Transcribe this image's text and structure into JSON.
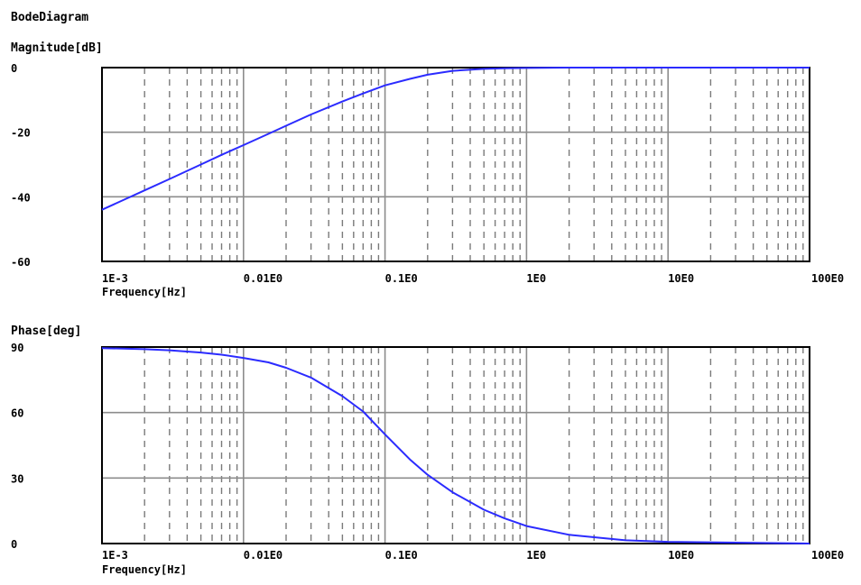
{
  "page_title": "BodeDiagram",
  "colors": {
    "curve": "#2b2bff",
    "grid_major": "#8c8c8c",
    "grid_minor": "#7a7a7a",
    "frame": "#000000"
  },
  "chart_data": [
    {
      "type": "line",
      "title": "Magnitude[dB]",
      "xlabel": "Frequency[Hz]",
      "ylabel": "Magnitude[dB]",
      "x_scale": "log",
      "xlim": [
        0.001,
        100
      ],
      "ylim": [
        -60,
        0
      ],
      "y_ticks": [
        0,
        -20,
        -40,
        -60
      ],
      "y_tick_labels": [
        "0",
        "-20",
        "-40",
        "-60"
      ],
      "x_ticks": [
        0.001,
        0.01,
        0.1,
        1,
        10,
        100
      ],
      "x_tick_labels": [
        "1E-3",
        "0.01E0",
        "0.1E0",
        "1E0",
        "10E0",
        "100E0"
      ],
      "grid": true,
      "series": [
        {
          "x": [
            0.001,
            0.0015,
            0.002,
            0.003,
            0.005,
            0.007,
            0.01,
            0.015,
            0.02,
            0.03,
            0.05,
            0.07,
            0.1,
            0.15,
            0.2,
            0.3,
            0.5,
            0.7,
            1,
            2,
            5,
            10,
            100
          ],
          "y": [
            -44,
            -40.5,
            -38,
            -34.5,
            -30,
            -27,
            -24,
            -20.5,
            -18,
            -14.5,
            -10.5,
            -8,
            -5.5,
            -3.5,
            -2.2,
            -1,
            -0.4,
            -0.2,
            -0.1,
            0,
            0,
            0,
            0
          ]
        }
      ]
    },
    {
      "type": "line",
      "title": "Phase[deg]",
      "xlabel": "Frequency[Hz]",
      "ylabel": "Phase[deg]",
      "x_scale": "log",
      "xlim": [
        0.001,
        100
      ],
      "ylim": [
        0,
        90
      ],
      "y_ticks": [
        90,
        60,
        30,
        0
      ],
      "y_tick_labels": [
        "90",
        "60",
        "30",
        "0"
      ],
      "x_ticks": [
        0.001,
        0.01,
        0.1,
        1,
        10,
        100
      ],
      "x_tick_labels": [
        "1E-3",
        "0.01E0",
        "0.1E0",
        "1E0",
        "10E0",
        "100E0"
      ],
      "grid": true,
      "series": [
        {
          "x": [
            0.001,
            0.002,
            0.003,
            0.005,
            0.007,
            0.01,
            0.015,
            0.02,
            0.03,
            0.05,
            0.07,
            0.1,
            0.15,
            0.2,
            0.3,
            0.5,
            0.7,
            1,
            2,
            5,
            10,
            100
          ],
          "y": [
            89.5,
            89,
            88.5,
            87.5,
            86.5,
            85,
            83,
            80.5,
            76,
            67.5,
            60.5,
            50,
            38.5,
            31.5,
            23.5,
            15.5,
            11.5,
            8,
            4,
            1.5,
            0.8,
            0
          ]
        }
      ]
    }
  ]
}
